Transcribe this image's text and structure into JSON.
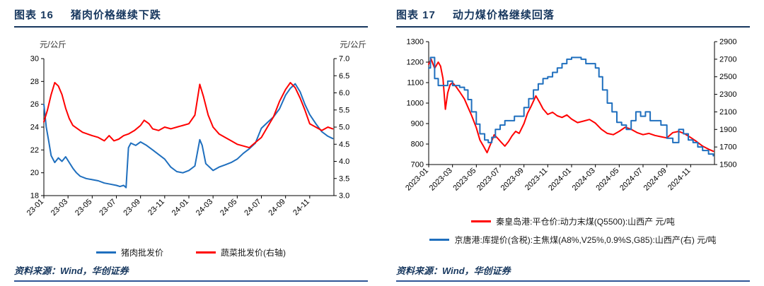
{
  "colors": {
    "accent": "#17375E",
    "axis": "#000000",
    "blue_line": "#1F6FBE",
    "red_line": "#FF0000"
  },
  "panels": [
    {
      "title_label": "图表 16",
      "title_text": "猪肉价格继续下跌",
      "source": "资料来源：Wind，华创证券"
    },
    {
      "title_label": "图表 17",
      "title_text": "动力煤价格继续回落",
      "source": "资料来源：Wind，华创证券"
    }
  ],
  "chart_data": [
    {
      "type": "line",
      "title": "猪肉价格继续下跌",
      "grid": false,
      "legend_position": "bottom",
      "x_range": [
        0,
        24
      ],
      "x_unit": "month index from 2023-01",
      "x_ticks": {
        "values": [
          0,
          2,
          4,
          6,
          8,
          10,
          12,
          14,
          16,
          18,
          20,
          22
        ],
        "labels": [
          "23-01",
          "23-03",
          "23-05",
          "23-07",
          "23-09",
          "23-11",
          "24-01",
          "24-03",
          "24-05",
          "24-07",
          "24-09",
          "24-11"
        ]
      },
      "y_left": {
        "min": 18,
        "max": 30,
        "ticks": [
          18,
          20,
          22,
          24,
          26,
          28,
          30
        ],
        "labels": [
          "18",
          "20",
          "22",
          "24",
          "26",
          "28",
          "30"
        ],
        "unit_label": "元/公斤"
      },
      "y_right": {
        "min": 3,
        "max": 7,
        "ticks": [
          3,
          3.5,
          4,
          4.5,
          5,
          5.5,
          6,
          6.5,
          7
        ],
        "labels": [
          "3.0",
          "3.5",
          "4.0",
          "4.5",
          "5.0",
          "5.5",
          "6.0",
          "6.5",
          "7.0"
        ],
        "unit_label": "元/公斤"
      },
      "series": [
        {
          "name": "猪肉批发价",
          "axis": "left",
          "color": "#1F6FBE",
          "step": false,
          "x": [
            0,
            0.2,
            0.4,
            0.6,
            0.9,
            1.2,
            1.5,
            1.8,
            2.1,
            2.4,
            2.7,
            3.0,
            3.5,
            4.0,
            4.5,
            5.0,
            5.5,
            6.0,
            6.3,
            6.6,
            6.8,
            7.0,
            7.2,
            7.6,
            8.0,
            8.5,
            9.0,
            9.5,
            10.0,
            10.5,
            11.0,
            11.5,
            12.0,
            12.5,
            12.9,
            13.1,
            13.4,
            14.0,
            14.5,
            15.0,
            15.5,
            16.0,
            16.5,
            17.0,
            17.5,
            18.0,
            18.5,
            19.0,
            19.5,
            20.0,
            20.4,
            20.8,
            21.2,
            21.6,
            22.0,
            22.5,
            23.0,
            23.5,
            23.9
          ],
          "y": [
            26.0,
            24.0,
            22.8,
            21.5,
            20.9,
            21.3,
            21.0,
            21.4,
            20.9,
            20.4,
            20.0,
            19.7,
            19.5,
            19.4,
            19.3,
            19.1,
            19.0,
            18.9,
            18.8,
            18.9,
            18.7,
            22.2,
            22.6,
            22.4,
            22.7,
            22.4,
            22.0,
            21.6,
            21.2,
            20.5,
            20.1,
            20.0,
            20.2,
            20.6,
            22.9,
            22.4,
            20.8,
            20.2,
            20.5,
            20.7,
            20.9,
            21.2,
            21.7,
            22.1,
            22.6,
            23.9,
            24.4,
            24.9,
            25.6,
            26.8,
            27.4,
            27.8,
            27.1,
            26.0,
            25.1,
            24.3,
            23.6,
            23.2,
            23.0
          ]
        },
        {
          "name": "蔬菜批发价(右轴)",
          "axis": "right",
          "color": "#FF0000",
          "step": false,
          "x": [
            0,
            0.3,
            0.6,
            0.9,
            1.2,
            1.5,
            1.8,
            2.1,
            2.4,
            2.8,
            3.2,
            3.6,
            4.0,
            4.5,
            5.0,
            5.4,
            5.8,
            6.2,
            6.6,
            7.0,
            7.5,
            8.0,
            8.3,
            8.7,
            9.0,
            9.5,
            10.0,
            10.5,
            11.0,
            11.5,
            12.0,
            12.5,
            12.9,
            13.2,
            13.6,
            14.0,
            14.5,
            15.0,
            15.5,
            16.0,
            16.5,
            17.0,
            17.5,
            18.0,
            18.5,
            19.0,
            19.5,
            20.0,
            20.4,
            20.8,
            21.2,
            21.6,
            22.0,
            22.5,
            23.0,
            23.5,
            23.9
          ],
          "y": [
            5.15,
            5.5,
            5.95,
            6.3,
            6.2,
            5.95,
            5.55,
            5.25,
            5.05,
            4.95,
            4.85,
            4.8,
            4.75,
            4.7,
            4.6,
            4.75,
            4.6,
            4.65,
            4.75,
            4.8,
            4.9,
            5.05,
            5.2,
            5.1,
            4.95,
            4.9,
            5.0,
            4.95,
            5.0,
            5.05,
            5.1,
            5.35,
            6.25,
            5.9,
            5.35,
            5.0,
            4.8,
            4.7,
            4.6,
            4.5,
            4.45,
            4.4,
            4.55,
            4.7,
            5.0,
            5.3,
            5.75,
            6.1,
            6.3,
            6.15,
            5.85,
            5.5,
            5.1,
            5.0,
            4.9,
            5.0,
            4.95
          ]
        }
      ]
    },
    {
      "type": "line",
      "title": "动力煤价格继续回落",
      "grid": false,
      "legend_position": "bottom",
      "x_range": [
        0,
        24
      ],
      "x_unit": "month index from 2023-01",
      "x_ticks": {
        "values": [
          0,
          2,
          4,
          6,
          8,
          10,
          12,
          14,
          16,
          18,
          20,
          22
        ],
        "labels": [
          "2023-01",
          "2023-03",
          "2023-05",
          "2023-07",
          "2023-09",
          "2023-11",
          "2024-01",
          "2024-03",
          "2024-05",
          "2024-07",
          "2024-09",
          "2024-11"
        ]
      },
      "y_left": {
        "min": 700,
        "max": 1300,
        "ticks": [
          700,
          800,
          900,
          1000,
          1100,
          1200,
          1300
        ],
        "labels": [
          "700",
          "800",
          "900",
          "1000",
          "1100",
          "1200",
          "1300"
        ],
        "unit_label": ""
      },
      "y_right": {
        "min": 1500,
        "max": 2900,
        "ticks": [
          1500,
          1700,
          1900,
          2100,
          2300,
          2500,
          2700,
          2900
        ],
        "labels": [
          "1500",
          "1700",
          "1900",
          "2100",
          "2300",
          "2500",
          "2700",
          "2900"
        ],
        "unit_label": ""
      },
      "series": [
        {
          "name": "秦皇岛港:平仓价:动力末煤(Q5500):山西产 元/吨",
          "axis": "left",
          "color": "#FF0000",
          "step": false,
          "x": [
            0,
            0.2,
            0.5,
            0.8,
            1.0,
            1.2,
            1.4,
            1.6,
            1.8,
            2.0,
            2.3,
            2.6,
            3.0,
            3.3,
            3.6,
            4.0,
            4.3,
            4.6,
            4.9,
            5.2,
            5.5,
            5.8,
            6.1,
            6.4,
            6.7,
            7.0,
            7.3,
            7.6,
            8.0,
            8.3,
            8.6,
            9.0,
            9.3,
            9.6,
            10.0,
            10.4,
            10.8,
            11.2,
            11.6,
            12.0,
            12.5,
            13.0,
            13.5,
            14.0,
            14.5,
            15.0,
            15.5,
            16.0,
            16.5,
            17.0,
            17.5,
            18.0,
            18.5,
            19.0,
            19.5,
            20.0,
            20.5,
            21.0,
            21.5,
            22.0,
            22.5,
            23.0,
            23.5,
            23.9
          ],
          "y": [
            1190,
            1215,
            1170,
            1200,
            1180,
            1120,
            970,
            1050,
            1090,
            1100,
            1080,
            1055,
            1020,
            980,
            940,
            880,
            820,
            790,
            758,
            800,
            845,
            828,
            808,
            790,
            812,
            840,
            862,
            852,
            900,
            950,
            985,
            1035,
            1005,
            972,
            945,
            955,
            938,
            930,
            942,
            922,
            905,
            912,
            920,
            902,
            872,
            852,
            846,
            862,
            882,
            872,
            856,
            846,
            852,
            842,
            836,
            830,
            856,
            862,
            850,
            832,
            812,
            790,
            775,
            765
          ]
        },
        {
          "name": "京唐港:库提价(含税):主焦煤(A8%,V25%,0.9%S,G85):山西产(右) 元/吨",
          "axis": "right",
          "color": "#1F6FBE",
          "step": true,
          "x": [
            0,
            0.15,
            0.3,
            0.5,
            0.8,
            1.2,
            1.6,
            2.0,
            2.3,
            2.6,
            3.0,
            3.3,
            3.6,
            4.0,
            4.3,
            4.7,
            5.0,
            5.3,
            5.6,
            6.0,
            6.4,
            6.8,
            7.2,
            7.6,
            8.0,
            8.4,
            8.8,
            9.2,
            9.6,
            10.0,
            10.4,
            10.8,
            11.2,
            11.6,
            12.0,
            12.4,
            12.8,
            13.2,
            13.6,
            14.0,
            14.3,
            14.6,
            15.0,
            15.4,
            15.8,
            16.2,
            16.6,
            17.0,
            17.4,
            17.8,
            18.2,
            18.6,
            19.0,
            19.5,
            20.0,
            20.5,
            21.0,
            21.4,
            21.8,
            22.2,
            22.6,
            23.0,
            23.5,
            23.9
          ],
          "y": [
            2600,
            2720,
            2720,
            2480,
            2400,
            2400,
            2450,
            2400,
            2400,
            2380,
            2350,
            2240,
            2100,
            1960,
            1850,
            1780,
            1750,
            1810,
            1900,
            1950,
            2000,
            2000,
            2050,
            2050,
            2150,
            2250,
            2350,
            2420,
            2480,
            2500,
            2550,
            2600,
            2650,
            2700,
            2720,
            2720,
            2700,
            2650,
            2650,
            2600,
            2500,
            2350,
            2200,
            2100,
            1980,
            1950,
            1900,
            2000,
            2100,
            2050,
            2100,
            2000,
            2000,
            1950,
            1800,
            1750,
            1900,
            1850,
            1780,
            1750,
            1700,
            1660,
            1620,
            1600
          ]
        }
      ]
    }
  ]
}
